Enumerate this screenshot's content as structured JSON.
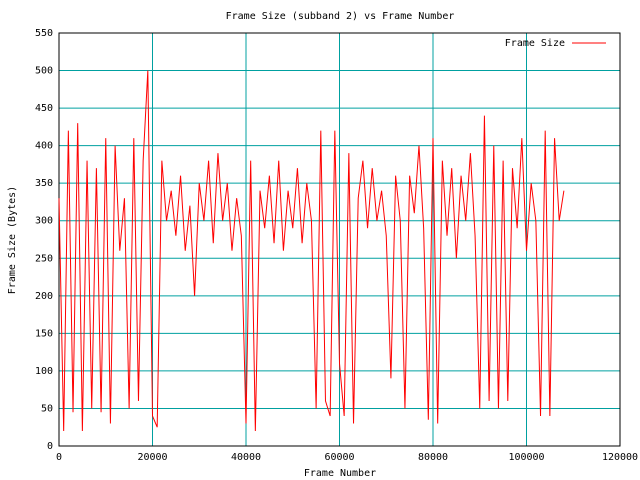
{
  "chart_data": {
    "type": "line",
    "title": "Frame Size (subband 2) vs Frame Number",
    "xlabel": "Frame Number",
    "ylabel": "Frame Size (Bytes)",
    "xlim": [
      0,
      120000
    ],
    "ylim": [
      0,
      550
    ],
    "xticks": [
      0,
      20000,
      40000,
      60000,
      80000,
      100000,
      120000
    ],
    "yticks": [
      0,
      50,
      100,
      150,
      200,
      250,
      300,
      350,
      400,
      450,
      500,
      550
    ],
    "grid": true,
    "grid_color": "#00a0a0",
    "legend": "top-right",
    "x": [
      0,
      1000,
      2000,
      3000,
      4000,
      5000,
      6000,
      7000,
      8000,
      9000,
      10000,
      11000,
      12000,
      13000,
      14000,
      15000,
      16000,
      17000,
      18000,
      19000,
      20000,
      21000,
      22000,
      23000,
      24000,
      25000,
      26000,
      27000,
      28000,
      29000,
      30000,
      31000,
      32000,
      33000,
      34000,
      35000,
      36000,
      37000,
      38000,
      39000,
      40000,
      41000,
      42000,
      43000,
      44000,
      45000,
      46000,
      47000,
      48000,
      49000,
      50000,
      51000,
      52000,
      53000,
      54000,
      55000,
      56000,
      57000,
      58000,
      59000,
      60000,
      61000,
      62000,
      63000,
      64000,
      65000,
      66000,
      67000,
      68000,
      69000,
      70000,
      71000,
      72000,
      73000,
      74000,
      75000,
      76000,
      77000,
      78000,
      79000,
      80000,
      81000,
      82000,
      83000,
      84000,
      85000,
      86000,
      87000,
      88000,
      89000,
      90000,
      91000,
      92000,
      93000,
      94000,
      95000,
      96000,
      97000,
      98000,
      99000,
      100000,
      101000,
      102000,
      103000,
      104000,
      105000,
      106000,
      107000,
      108000
    ],
    "series": [
      {
        "name": "Frame Size",
        "color": "#ff0000",
        "values": [
          330,
          20,
          420,
          45,
          430,
          20,
          380,
          50,
          370,
          45,
          410,
          30,
          400,
          260,
          330,
          50,
          410,
          60,
          380,
          500,
          40,
          25,
          380,
          300,
          340,
          280,
          360,
          260,
          320,
          200,
          350,
          300,
          380,
          270,
          390,
          300,
          350,
          260,
          330,
          280,
          30,
          380,
          20,
          340,
          290,
          360,
          270,
          380,
          260,
          340,
          290,
          370,
          270,
          350,
          300,
          50,
          420,
          60,
          40,
          420,
          110,
          40,
          390,
          30,
          330,
          380,
          290,
          370,
          300,
          340,
          280,
          90,
          360,
          300,
          50,
          360,
          310,
          400,
          290,
          35,
          410,
          30,
          380,
          280,
          370,
          250,
          360,
          300,
          390,
          280,
          50,
          440,
          60,
          400,
          50,
          380,
          60,
          370,
          290,
          410,
          260,
          350,
          300,
          40,
          420,
          40,
          410,
          300,
          340
        ]
      }
    ]
  }
}
